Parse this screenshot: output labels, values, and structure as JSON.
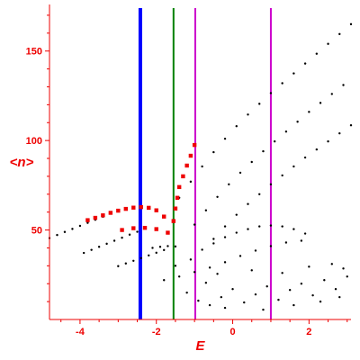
{
  "chart_data": {
    "type": "scatter",
    "title": "",
    "xlabel": "E",
    "ylabel": "<n>",
    "xlim": [
      -4.8,
      3.1
    ],
    "ylim": [
      0,
      176
    ],
    "x_ticks": [
      -4,
      -2,
      0,
      2
    ],
    "y_ticks": [
      50,
      100,
      150
    ],
    "x_tick_labels": [
      "-4",
      "-2",
      "0",
      "2"
    ],
    "y_tick_labels": [
      "50",
      "100",
      "150"
    ],
    "grid": false,
    "legend": "none",
    "colors": {
      "axis": "#ee0000",
      "black_points": "#000000",
      "red_points": "#ee0000",
      "line_blue": "#0000ff",
      "line_green": "#008000",
      "line_magenta": "#cc00cc"
    },
    "vertical_lines": [
      {
        "x": -2.42,
        "color": "#0000ff"
      },
      {
        "x": -1.55,
        "color": "#008000"
      },
      {
        "x": -0.98,
        "color": "#cc00cc"
      },
      {
        "x": 1.0,
        "color": "#cc00cc"
      }
    ],
    "series": [
      {
        "color": "#000000",
        "marker": "dot",
        "points": [
          [
            -4.8,
            45.5
          ],
          [
            -4.6,
            47.2
          ],
          [
            -4.4,
            48.9
          ],
          [
            -4.2,
            50.6
          ],
          [
            -4.0,
            52.3
          ],
          [
            -3.8,
            54.0
          ],
          [
            -3.6,
            55.7
          ],
          [
            -3.4,
            57.4
          ],
          [
            -3.2,
            59.1
          ]
        ]
      },
      {
        "color": "#000000",
        "marker": "dot",
        "points": [
          [
            -3.9,
            37.2
          ],
          [
            -3.7,
            38.9
          ],
          [
            -3.5,
            40.6
          ],
          [
            -3.3,
            42.3
          ],
          [
            -3.1,
            44.0
          ],
          [
            -2.9,
            45.7
          ],
          [
            -2.7,
            47.4
          ],
          [
            -2.5,
            49.0
          ]
        ]
      },
      {
        "color": "#000000",
        "marker": "dot",
        "points": [
          [
            -3.0,
            29.8
          ],
          [
            -2.8,
            31.3
          ],
          [
            -2.6,
            32.8
          ],
          [
            -2.4,
            34.3
          ],
          [
            -2.2,
            35.8
          ],
          [
            -2.0,
            37.3
          ],
          [
            -1.8,
            38.8
          ]
        ]
      },
      {
        "color": "#000000",
        "marker": "dot",
        "points": [
          [
            -2.1,
            40.0
          ],
          [
            -1.9,
            40.6
          ],
          [
            -1.7,
            41.0
          ],
          [
            -1.5,
            40.8
          ]
        ]
      },
      {
        "color": "#000000",
        "marker": "dot",
        "points": [
          [
            -1.4,
            68.0
          ],
          [
            -1.1,
            77.0
          ],
          [
            -0.8,
            85.5
          ],
          [
            -0.5,
            93.5
          ],
          [
            -0.2,
            101.0
          ],
          [
            0.1,
            108.0
          ],
          [
            0.4,
            114.5
          ],
          [
            0.7,
            120.5
          ],
          [
            1.0,
            126.5
          ],
          [
            1.3,
            132.0
          ],
          [
            1.6,
            137.5
          ],
          [
            1.9,
            143.0
          ],
          [
            2.2,
            148.5
          ],
          [
            2.5,
            154.0
          ],
          [
            2.8,
            159.5
          ],
          [
            3.1,
            165.0
          ]
        ]
      },
      {
        "color": "#000000",
        "marker": "dot",
        "points": [
          [
            -1.0,
            53.0
          ],
          [
            -0.7,
            61.0
          ],
          [
            -0.4,
            68.5
          ],
          [
            -0.1,
            75.5
          ],
          [
            0.2,
            82.0
          ],
          [
            0.5,
            88.0
          ],
          [
            0.8,
            94.0
          ],
          [
            1.1,
            99.5
          ],
          [
            1.4,
            105.0
          ],
          [
            1.7,
            110.5
          ],
          [
            2.0,
            116.0
          ],
          [
            2.3,
            121.0
          ],
          [
            2.6,
            126.0
          ],
          [
            2.9,
            131.0
          ]
        ]
      },
      {
        "color": "#000000",
        "marker": "dot",
        "points": [
          [
            -0.5,
            45.0
          ],
          [
            -0.2,
            52.0
          ],
          [
            0.1,
            58.5
          ],
          [
            0.4,
            64.5
          ],
          [
            0.7,
            70.0
          ],
          [
            1.0,
            75.5
          ],
          [
            1.3,
            80.5
          ],
          [
            1.6,
            85.5
          ],
          [
            1.9,
            90.5
          ],
          [
            2.2,
            95.0
          ],
          [
            2.5,
            99.5
          ],
          [
            2.8,
            104.0
          ],
          [
            3.1,
            108.5
          ]
        ]
      },
      {
        "color": "#000000",
        "marker": "dot",
        "points": [
          [
            -0.8,
            39.0
          ],
          [
            -0.5,
            42.5
          ],
          [
            -0.2,
            46.0
          ],
          [
            0.1,
            48.5
          ],
          [
            0.4,
            50.5
          ],
          [
            0.7,
            52.0
          ],
          [
            1.0,
            52.5
          ],
          [
            1.3,
            52.0
          ],
          [
            1.6,
            50.5
          ],
          [
            1.9,
            48.0
          ]
        ]
      },
      {
        "color": "#000000",
        "marker": "dot",
        "points": [
          [
            -1.8,
            22.0
          ],
          [
            -1.4,
            24.0
          ],
          [
            -1.0,
            26.5
          ],
          [
            -0.6,
            29.0
          ],
          [
            -0.2,
            32.0
          ],
          [
            0.2,
            35.5
          ],
          [
            0.6,
            38.5
          ],
          [
            1.0,
            41.0
          ],
          [
            1.4,
            43.0
          ],
          [
            1.8,
            44.0
          ]
        ]
      },
      {
        "color": "#000000",
        "marker": "dot",
        "points": [
          [
            -1.2,
            15.0
          ],
          [
            -0.9,
            10.5
          ],
          [
            -0.6,
            8.0
          ],
          [
            -0.3,
            12.5
          ],
          [
            0.0,
            17.0
          ],
          [
            0.3,
            9.5
          ],
          [
            0.6,
            14.0
          ],
          [
            0.9,
            18.5
          ],
          [
            1.2,
            11.0
          ],
          [
            1.5,
            16.5
          ],
          [
            1.8,
            20.0
          ],
          [
            2.1,
            13.5
          ],
          [
            2.4,
            22.0
          ],
          [
            2.7,
            17.0
          ],
          [
            3.0,
            24.0
          ],
          [
            -1.5,
            30.0
          ],
          [
            -1.1,
            33.5
          ],
          [
            -0.7,
            20.5
          ],
          [
            -0.4,
            25.5
          ],
          [
            0.5,
            27.5
          ],
          [
            1.3,
            26.0
          ],
          [
            2.0,
            29.5
          ],
          [
            2.6,
            31.0
          ],
          [
            2.9,
            28.5
          ],
          [
            -0.2,
            6.5
          ],
          [
            0.8,
            5.5
          ],
          [
            1.6,
            8.0
          ],
          [
            2.3,
            10.0
          ],
          [
            2.8,
            12.5
          ]
        ]
      },
      {
        "color": "#ee0000",
        "marker": "square",
        "points": [
          [
            -3.8,
            55.5
          ],
          [
            -3.6,
            56.8
          ],
          [
            -3.4,
            58.2
          ],
          [
            -3.2,
            59.6
          ],
          [
            -3.0,
            60.8
          ],
          [
            -2.8,
            61.8
          ],
          [
            -2.6,
            62.5
          ],
          [
            -2.4,
            62.8
          ],
          [
            -2.2,
            62.4
          ],
          [
            -2.0,
            61.0
          ],
          [
            -1.8,
            57.5
          ],
          [
            -2.9,
            50.0
          ],
          [
            -2.6,
            51.0
          ],
          [
            -2.3,
            51.2
          ],
          [
            -2.0,
            50.5
          ],
          [
            -1.7,
            48.5
          ],
          [
            -1.55,
            55.0
          ],
          [
            -1.5,
            62.0
          ],
          [
            -1.45,
            68.0
          ],
          [
            -1.4,
            74.0
          ],
          [
            -1.3,
            80.0
          ],
          [
            -1.2,
            86.0
          ],
          [
            -1.1,
            91.5
          ],
          [
            -1.0,
            97.5
          ]
        ]
      }
    ]
  }
}
